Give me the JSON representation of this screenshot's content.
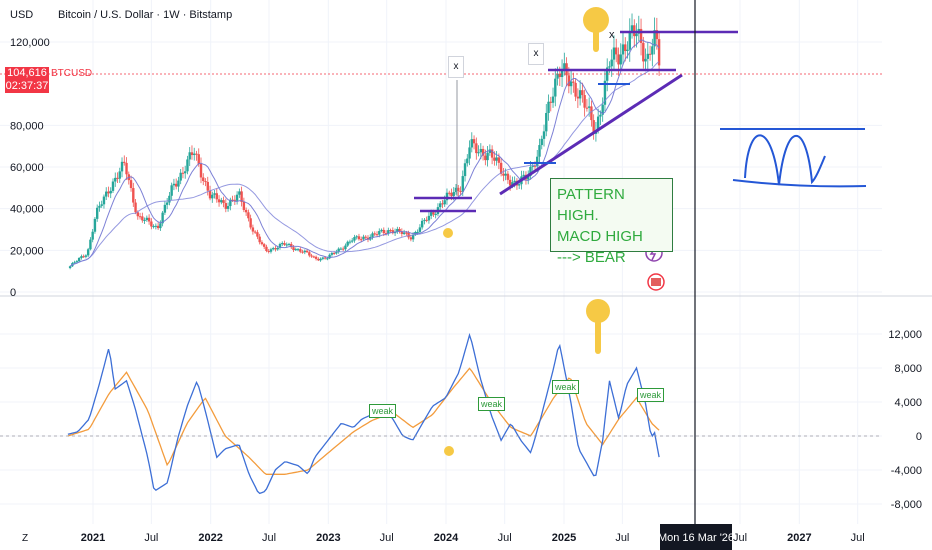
{
  "header": {
    "currency": "USD",
    "title": "Bitcoin / U.S. Dollar · 1W · Bitstamp"
  },
  "price_tag": {
    "value": "104,616",
    "symbol": "BTCUSD",
    "countdown": "02:37:37"
  },
  "annotation": {
    "line1": "PATTERN HIGH.",
    "line2": "MACD HIGH",
    "line3": "---> BEAR"
  },
  "weak_label": "weak",
  "x_marker": "x",
  "crosshair_label": "Mon 16 Mar '26",
  "corner_icon": "Z",
  "colors": {
    "candle_up": "#26a69a",
    "candle_down": "#ef5350",
    "ma_fast": "#6f73d2",
    "ma_slow": "#7b7fd8",
    "macd": "#3d6fd6",
    "signal": "#f39c3d",
    "purple_line": "#5c2bb5",
    "blue_drawing": "#2457d6",
    "note_text": "#2faa3e",
    "price_red": "#f23645"
  },
  "chart_data": [
    {
      "type": "candlestick",
      "title": "Bitcoin / U.S. Dollar · 1W · Bitstamp",
      "ylim": [
        0,
        125000
      ],
      "y_ticks": [
        "120,000",
        "80,000",
        "60,000",
        "40,000",
        "20,000",
        "0"
      ],
      "x_ticks": [
        "2021",
        "Jul",
        "2022",
        "Jul",
        "2023",
        "Jul",
        "2024",
        "Jul",
        "2025",
        "Jul",
        "Jul",
        "2027",
        "Jul"
      ],
      "last_price": 104616,
      "series": [
        {
          "name": "BTCUSD",
          "dates": [
            "2020-10-15",
            "2020-12-15",
            "2021-01-10",
            "2021-02-20",
            "2021-04-10",
            "2021-05-20",
            "2021-07-20",
            "2021-09-05",
            "2021-10-20",
            "2021-11-10",
            "2021-12-31",
            "2022-02-15",
            "2022-03-30",
            "2022-05-15",
            "2022-06-20",
            "2022-08-15",
            "2022-10-15",
            "2022-11-20",
            "2022-12-31",
            "2023-03-15",
            "2023-05-15",
            "2023-07-15",
            "2023-09-15",
            "2023-10-31",
            "2023-12-20",
            "2024-02-15",
            "2024-03-15",
            "2024-05-15",
            "2024-08-05",
            "2024-10-15",
            "2024-11-20",
            "2024-12-17",
            "2025-02-15",
            "2025-04-08",
            "2025-05-22",
            "2025-07-14",
            "2025-08-14",
            "2025-09-20",
            "2025-10-06",
            "2025-10-28"
          ],
          "close": [
            11500,
            19000,
            37000,
            50000,
            61000,
            36000,
            31000,
            50000,
            62000,
            67000,
            46000,
            42000,
            46000,
            29000,
            19500,
            23000,
            19500,
            16000,
            16500,
            25000,
            27000,
            30000,
            26500,
            34500,
            43000,
            51000,
            70000,
            66000,
            50000,
            65000,
            95000,
            106000,
            97000,
            77000,
            109000,
            120000,
            124000,
            112000,
            124000,
            104616
          ]
        }
      ]
    },
    {
      "type": "line",
      "title": "",
      "ylim": [
        -9000,
        16000
      ],
      "y_ticks": [
        "12,000",
        "8,000",
        "4,000",
        "0",
        "-4,000",
        "-8,000"
      ],
      "series": [
        {
          "name": "",
          "dates": [
            "2020-10-15",
            "2020-11-15",
            "2020-12-20",
            "2021-01-20",
            "2021-02-20",
            "2021-03-10",
            "2021-04-15",
            "2021-05-10",
            "2021-06-20",
            "2021-07-10",
            "2021-08-20",
            "2021-09-20",
            "2021-10-20",
            "2021-11-20",
            "2021-12-15",
            "2022-01-20",
            "2022-02-15",
            "2022-03-30",
            "2022-04-30",
            "2022-05-30",
            "2022-06-20",
            "2022-07-20",
            "2022-08-20",
            "2022-09-30",
            "2022-10-30",
            "2022-11-20",
            "2022-12-31",
            "2023-02-10",
            "2023-03-20",
            "2023-04-15",
            "2023-05-15",
            "2023-06-20",
            "2023-07-20",
            "2023-08-20",
            "2023-09-20",
            "2023-10-20",
            "2023-11-20",
            "2023-12-31",
            "2024-02-10",
            "2024-03-15",
            "2024-04-15",
            "2024-05-20",
            "2024-06-20",
            "2024-07-20",
            "2024-08-20",
            "2024-09-20",
            "2024-10-20",
            "2024-11-30",
            "2024-12-17",
            "2025-01-20",
            "2025-02-15",
            "2025-03-10",
            "2025-04-08",
            "2025-05-01",
            "2025-05-22",
            "2025-06-20",
            "2025-07-14",
            "2025-08-14",
            "2025-09-10",
            "2025-09-30",
            "2025-10-06",
            "2025-10-28"
          ],
          "values": [
            200,
            500,
            2000,
            6000,
            10500,
            5500,
            6500,
            3500,
            -2500,
            -6500,
            -5500,
            -400,
            3500,
            6500,
            3000,
            -2500,
            -1500,
            -1000,
            -4500,
            -6800,
            -6500,
            -4000,
            -3000,
            -3500,
            -4500,
            -2500,
            -500,
            1500,
            1000,
            2000,
            2500,
            3500,
            2000,
            0,
            -500,
            1500,
            3500,
            4500,
            7500,
            12000,
            7000,
            2500,
            -500,
            1500,
            -500,
            -2000,
            2000,
            8000,
            11000,
            4500,
            -1500,
            -3000,
            -5000,
            -500,
            6500,
            2000,
            6000,
            8000,
            4000,
            -500,
            1000,
            -3500
          ]
        },
        {
          "name": "",
          "dates": [
            "2020-10-15",
            "2020-12-20",
            "2021-02-20",
            "2021-04-15",
            "2021-06-20",
            "2021-08-20",
            "2021-10-20",
            "2021-12-15",
            "2022-02-15",
            "2022-04-30",
            "2022-06-20",
            "2022-08-20",
            "2022-10-30",
            "2022-12-31",
            "2023-03-20",
            "2023-05-15",
            "2023-07-20",
            "2023-09-20",
            "2023-11-20",
            "2024-01-20",
            "2024-03-15",
            "2024-05-20",
            "2024-07-20",
            "2024-09-20",
            "2024-11-30",
            "2025-01-20",
            "2025-03-10",
            "2025-05-01",
            "2025-06-20",
            "2025-08-14",
            "2025-09-30",
            "2025-10-28"
          ],
          "values": [
            0,
            800,
            5000,
            7500,
            3000,
            -3500,
            1500,
            4500,
            0,
            -2500,
            -4500,
            -4500,
            -4000,
            -2000,
            500,
            1800,
            2800,
            1000,
            2500,
            5500,
            8000,
            4000,
            1000,
            0,
            4500,
            7000,
            1500,
            -1000,
            2000,
            4500,
            1500,
            500
          ]
        }
      ]
    }
  ]
}
